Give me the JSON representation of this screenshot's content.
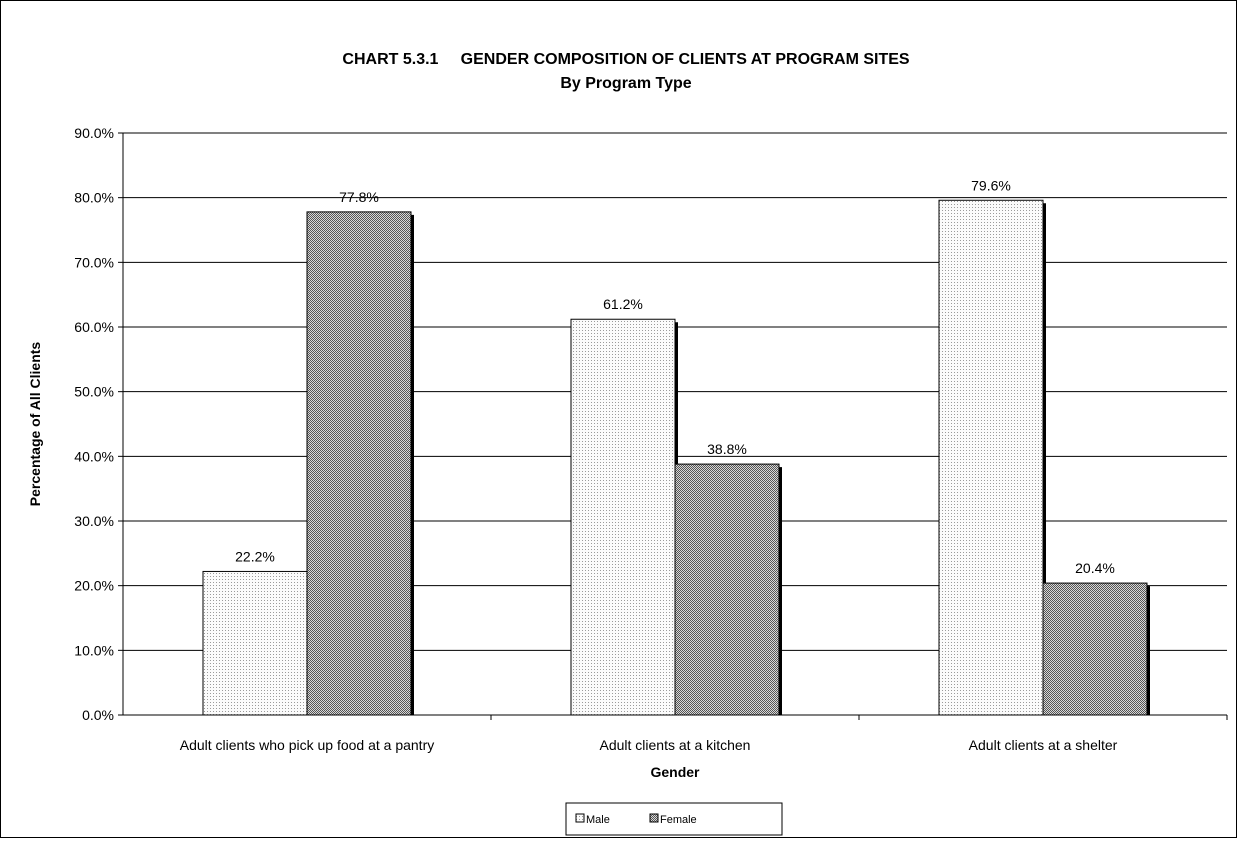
{
  "chart_data": {
    "type": "bar",
    "title": "CHART 5.3.1     GENDER COMPOSITION OF CLIENTS AT PROGRAM SITES",
    "subtitle": "By Program Type",
    "xlabel": "Gender",
    "ylabel": "Percentage of All Clients",
    "categories": [
      "Adult clients who pick up food at a pantry",
      "Adult clients at a kitchen",
      "Adult clients at a shelter"
    ],
    "series": [
      {
        "name": "Male",
        "values": [
          22.2,
          61.2,
          79.6
        ]
      },
      {
        "name": "Female",
        "values": [
          77.8,
          38.8,
          20.4
        ]
      }
    ],
    "data_labels": [
      [
        "22.2%",
        "61.2%",
        "79.6%"
      ],
      [
        "77.8%",
        "38.8%",
        "20.4%"
      ]
    ],
    "ylim": [
      0,
      90
    ],
    "yticks": [
      0,
      10,
      20,
      30,
      40,
      50,
      60,
      70,
      80,
      90
    ],
    "ytick_labels": [
      "0.0%",
      "10.0%",
      "20.0%",
      "30.0%",
      "40.0%",
      "50.0%",
      "60.0%",
      "70.0%",
      "80.0%",
      "90.0%"
    ],
    "grid": true,
    "legend_position": "bottom",
    "colors": {
      "male": "#f2f2f2",
      "female": "#9a9a9a",
      "shadow": "#000000",
      "grid": "#000000"
    }
  }
}
